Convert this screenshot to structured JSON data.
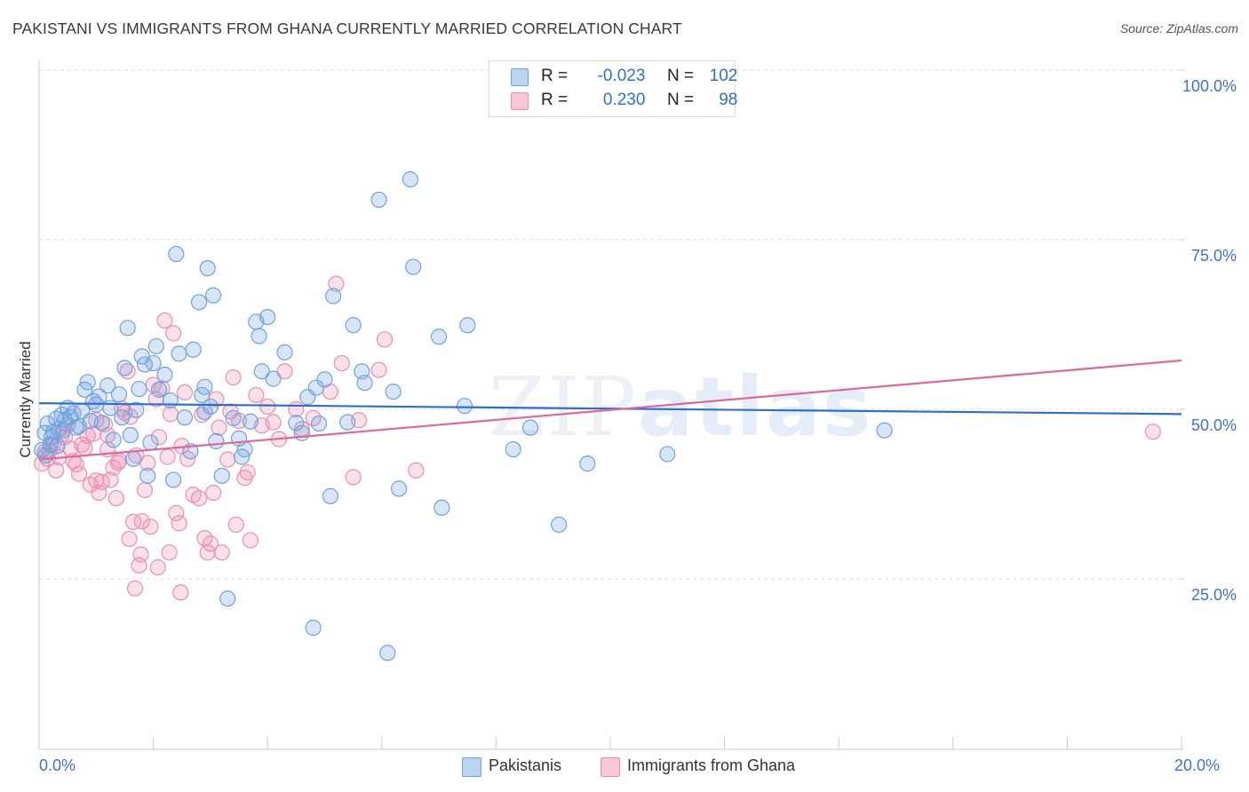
{
  "header": {
    "title": "PAKISTANI VS IMMIGRANTS FROM GHANA CURRENTLY MARRIED CORRELATION CHART",
    "source": "Source: ZipAtlas.com"
  },
  "legend": {
    "rows": [
      {
        "r_label": "R =",
        "r_value": "-0.023",
        "n_label": "N =",
        "n_value": "102"
      },
      {
        "r_label": "R =",
        "r_value": "0.230",
        "n_label": "N =",
        "n_value": "98"
      }
    ]
  },
  "watermark": {
    "zip": "ZIP",
    "atlas": "atlas"
  },
  "colors": {
    "pakistani": "#6fa3e0",
    "ghana": "#ee8fb0",
    "pak_line": "#2f6fd0",
    "gha_line": "#e0679a"
  },
  "chart_data": {
    "type": "scatter",
    "title": "PAKISTANI VS IMMIGRANTS FROM GHANA CURRENTLY MARRIED CORRELATION CHART",
    "xlabel": "",
    "ylabel": "Currently Married",
    "xlim": [
      0,
      20
    ],
    "ylim": [
      0,
      100
    ],
    "x_tick_labels": [
      "0.0%",
      "20.0%"
    ],
    "y_tick_labels": [
      "100.0%",
      "75.0%",
      "50.0%",
      "25.0%"
    ],
    "y_ticks": [
      100,
      75,
      50,
      25
    ],
    "legend_position": "top-center",
    "series": [
      {
        "name": "Pakistanis",
        "trend": {
          "y_at_x0": 50.9,
          "y_at_x20": 49.3
        },
        "points": [
          [
            0.1,
            46.5
          ],
          [
            0.15,
            47.9
          ],
          [
            0.2,
            44.8
          ],
          [
            0.25,
            46.7
          ],
          [
            0.3,
            48.6
          ],
          [
            0.35,
            47.1
          ],
          [
            0.4,
            49.2
          ],
          [
            0.45,
            48.5
          ],
          [
            0.5,
            50.2
          ],
          [
            0.6,
            49.4
          ],
          [
            0.7,
            47.5
          ],
          [
            0.8,
            52.9
          ],
          [
            0.85,
            54.0
          ],
          [
            0.9,
            48.3
          ],
          [
            0.95,
            51.2
          ],
          [
            1.0,
            50.7
          ],
          [
            1.1,
            48.0
          ],
          [
            1.2,
            53.5
          ],
          [
            1.3,
            45.5
          ],
          [
            1.4,
            52.2
          ],
          [
            1.45,
            48.8
          ],
          [
            1.5,
            56.1
          ],
          [
            1.55,
            62.0
          ],
          [
            1.6,
            46.2
          ],
          [
            1.65,
            42.7
          ],
          [
            1.7,
            49.9
          ],
          [
            1.75,
            53.0
          ],
          [
            1.8,
            57.8
          ],
          [
            1.85,
            56.6
          ],
          [
            1.9,
            40.2
          ],
          [
            1.95,
            45.1
          ],
          [
            2.0,
            56.8
          ],
          [
            2.05,
            59.3
          ],
          [
            2.1,
            52.9
          ],
          [
            2.2,
            55.1
          ],
          [
            2.3,
            51.3
          ],
          [
            2.35,
            39.6
          ],
          [
            2.4,
            72.9
          ],
          [
            2.45,
            58.2
          ],
          [
            2.55,
            48.8
          ],
          [
            2.65,
            43.8
          ],
          [
            2.7,
            58.8
          ],
          [
            2.8,
            65.8
          ],
          [
            2.85,
            52.1
          ],
          [
            2.9,
            53.3
          ],
          [
            2.95,
            70.8
          ],
          [
            3.0,
            50.4
          ],
          [
            3.05,
            66.8
          ],
          [
            3.1,
            45.3
          ],
          [
            3.2,
            40.2
          ],
          [
            3.3,
            22.1
          ],
          [
            3.4,
            48.7
          ],
          [
            3.5,
            45.7
          ],
          [
            3.55,
            43.0
          ],
          [
            3.6,
            44.1
          ],
          [
            3.7,
            48.2
          ],
          [
            3.8,
            62.9
          ],
          [
            3.85,
            60.8
          ],
          [
            3.9,
            55.6
          ],
          [
            4.0,
            63.6
          ],
          [
            4.1,
            54.5
          ],
          [
            4.3,
            58.4
          ],
          [
            4.5,
            48.0
          ],
          [
            4.6,
            46.5
          ],
          [
            4.7,
            51.8
          ],
          [
            4.8,
            17.8
          ],
          [
            4.85,
            53.2
          ],
          [
            4.9,
            47.9
          ],
          [
            5.0,
            54.4
          ],
          [
            5.1,
            37.2
          ],
          [
            5.15,
            66.7
          ],
          [
            5.4,
            48.1
          ],
          [
            5.5,
            62.4
          ],
          [
            5.65,
            55.6
          ],
          [
            5.7,
            53.9
          ],
          [
            5.95,
            80.9
          ],
          [
            6.1,
            14.1
          ],
          [
            6.2,
            52.6
          ],
          [
            6.3,
            38.3
          ],
          [
            6.5,
            83.9
          ],
          [
            6.55,
            71.0
          ],
          [
            7.0,
            60.7
          ],
          [
            7.05,
            35.5
          ],
          [
            7.45,
            50.5
          ],
          [
            7.5,
            62.4
          ],
          [
            8.3,
            44.1
          ],
          [
            8.6,
            47.3
          ],
          [
            9.1,
            33.0
          ],
          [
            9.6,
            42.0
          ],
          [
            11.0,
            43.4
          ],
          [
            14.8,
            46.9
          ],
          [
            0.05,
            44.0
          ],
          [
            0.12,
            43.2
          ],
          [
            0.22,
            45.9
          ],
          [
            0.32,
            44.6
          ],
          [
            0.42,
            46.9
          ],
          [
            0.55,
            48.9
          ],
          [
            0.65,
            47.3
          ],
          [
            0.75,
            49.7
          ],
          [
            1.05,
            51.9
          ],
          [
            1.25,
            50.2
          ],
          [
            2.9,
            49.6
          ]
        ]
      },
      {
        "name": "Immigrants from Ghana",
        "trend": {
          "y_at_x0": 42.6,
          "y_at_x20": 57.2
        },
        "points": [
          [
            0.1,
            43.7
          ],
          [
            0.15,
            42.7
          ],
          [
            0.2,
            44.9
          ],
          [
            0.3,
            41.0
          ],
          [
            0.35,
            42.9
          ],
          [
            0.45,
            45.9
          ],
          [
            0.5,
            47.7
          ],
          [
            0.6,
            42.4
          ],
          [
            0.7,
            40.5
          ],
          [
            0.75,
            44.8
          ],
          [
            0.8,
            44.3
          ],
          [
            0.85,
            46.1
          ],
          [
            0.9,
            38.9
          ],
          [
            0.95,
            46.4
          ],
          [
            1.0,
            48.4
          ],
          [
            1.05,
            37.7
          ],
          [
            1.1,
            39.3
          ],
          [
            1.15,
            47.8
          ],
          [
            1.2,
            46.2
          ],
          [
            1.25,
            39.6
          ],
          [
            1.3,
            41.4
          ],
          [
            1.35,
            36.9
          ],
          [
            1.4,
            42.4
          ],
          [
            1.45,
            50.1
          ],
          [
            1.5,
            49.5
          ],
          [
            1.55,
            55.6
          ],
          [
            1.6,
            48.9
          ],
          [
            1.65,
            33.4
          ],
          [
            1.7,
            43.2
          ],
          [
            1.75,
            27.0
          ],
          [
            1.8,
            33.5
          ],
          [
            1.85,
            38.1
          ],
          [
            1.9,
            42.1
          ],
          [
            1.95,
            32.7
          ],
          [
            2.0,
            53.6
          ],
          [
            2.05,
            51.5
          ],
          [
            2.1,
            45.9
          ],
          [
            2.15,
            53.1
          ],
          [
            2.2,
            63.1
          ],
          [
            2.25,
            43.0
          ],
          [
            2.3,
            49.3
          ],
          [
            2.35,
            61.2
          ],
          [
            2.4,
            34.7
          ],
          [
            2.45,
            33.2
          ],
          [
            2.5,
            44.6
          ],
          [
            2.55,
            52.5
          ],
          [
            2.6,
            42.7
          ],
          [
            2.7,
            37.4
          ],
          [
            2.8,
            36.9
          ],
          [
            2.85,
            49.2
          ],
          [
            2.9,
            31.0
          ],
          [
            2.95,
            28.9
          ],
          [
            3.0,
            30.2
          ],
          [
            3.05,
            37.7
          ],
          [
            3.1,
            51.5
          ],
          [
            3.2,
            28.9
          ],
          [
            3.3,
            42.6
          ],
          [
            3.35,
            49.7
          ],
          [
            3.4,
            54.7
          ],
          [
            3.5,
            48.3
          ],
          [
            3.6,
            39.9
          ],
          [
            3.7,
            30.7
          ],
          [
            3.8,
            52.1
          ],
          [
            3.9,
            47.6
          ],
          [
            4.0,
            50.4
          ],
          [
            4.1,
            48.1
          ],
          [
            4.3,
            55.6
          ],
          [
            4.5,
            50.0
          ],
          [
            4.6,
            47.1
          ],
          [
            4.8,
            48.7
          ],
          [
            5.1,
            52.6
          ],
          [
            5.2,
            68.5
          ],
          [
            5.3,
            56.8
          ],
          [
            5.5,
            40.0
          ],
          [
            5.6,
            48.4
          ],
          [
            5.95,
            55.8
          ],
          [
            6.05,
            60.3
          ],
          [
            6.6,
            41.0
          ],
          [
            19.5,
            46.7
          ],
          [
            0.05,
            42.0
          ],
          [
            0.18,
            43.9
          ],
          [
            0.25,
            44.8
          ],
          [
            0.4,
            46.3
          ],
          [
            0.55,
            44.2
          ],
          [
            0.65,
            41.9
          ],
          [
            1.0,
            39.5
          ],
          [
            1.38,
            42.1
          ],
          [
            1.58,
            30.9
          ],
          [
            1.68,
            23.6
          ],
          [
            1.78,
            28.6
          ],
          [
            2.08,
            26.7
          ],
          [
            2.28,
            28.9
          ],
          [
            2.48,
            23.0
          ],
          [
            3.15,
            47.3
          ],
          [
            3.45,
            33.0
          ],
          [
            3.65,
            40.7
          ],
          [
            4.2,
            45.6
          ],
          [
            1.2,
            44.1
          ]
        ]
      }
    ]
  },
  "bottom_legend": [
    {
      "label": "Pakistanis"
    },
    {
      "label": "Immigrants from Ghana"
    }
  ]
}
